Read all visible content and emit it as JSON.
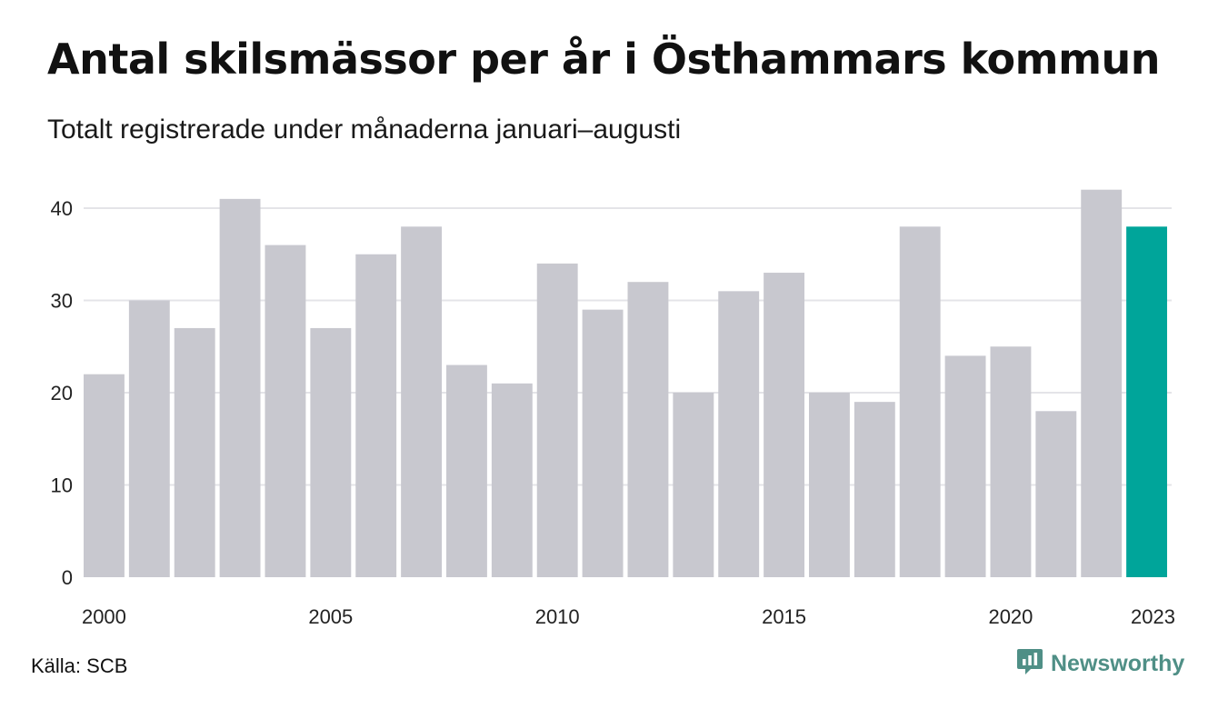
{
  "header": {
    "title": "Antal skilsmässor per år i Östhammars kommun",
    "subtitle": "Totalt registrerade under månaderna januari–augusti"
  },
  "footer": {
    "source": "Källa: SCB",
    "brand": "Newsworthy",
    "brand_icon": "newsworthy-logo-icon"
  },
  "colors": {
    "bar": "#c8c8cf",
    "highlight": "#00a59a",
    "grid": "#e4e4e8",
    "brand": "#4f8f86"
  },
  "chart_data": {
    "type": "bar",
    "title": "Antal skilsmässor per år i Östhammars kommun",
    "subtitle": "Totalt registrerade under månaderna januari–augusti",
    "xlabel": "",
    "ylabel": "",
    "categories": [
      "2000",
      "2001",
      "2002",
      "2003",
      "2004",
      "2005",
      "2006",
      "2007",
      "2008",
      "2009",
      "2010",
      "2011",
      "2012",
      "2013",
      "2014",
      "2015",
      "2016",
      "2017",
      "2018",
      "2019",
      "2020",
      "2021",
      "2022",
      "2023"
    ],
    "values": [
      22,
      30,
      27,
      41,
      36,
      27,
      35,
      38,
      23,
      21,
      34,
      29,
      32,
      20,
      31,
      33,
      20,
      19,
      38,
      24,
      25,
      18,
      42,
      38
    ],
    "highlight_category": "2023",
    "ylim": [
      0,
      42
    ],
    "yticks": [
      0,
      10,
      20,
      30,
      40
    ],
    "xtick_labels": [
      "2000",
      "2005",
      "2010",
      "2015",
      "2020",
      "2023"
    ],
    "grid": true,
    "legend": "none"
  }
}
